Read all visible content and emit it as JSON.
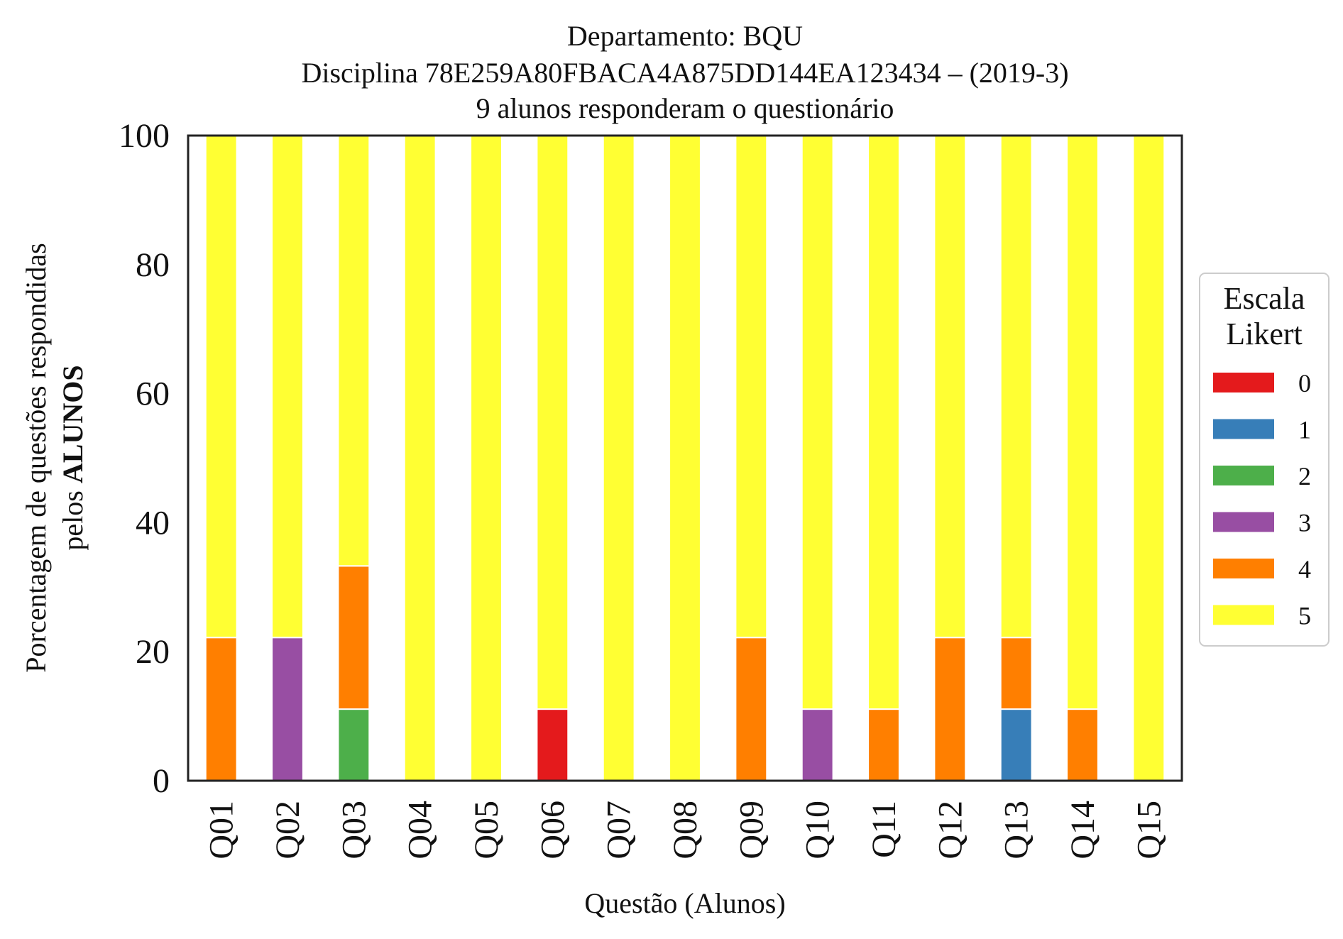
{
  "chart_data": {
    "type": "bar",
    "stacked": true,
    "title": [
      "Departamento: BQU",
      "Disciplina 78E259A80FBACA4A875DD144EA123434 – (2019-3)",
      "9 alunos responderam o questionário"
    ],
    "xlabel": "Questão (Alunos)",
    "ylabel_line1": "Porcentagem de questões respondidas",
    "ylabel_line2_prefix": "pelos ",
    "ylabel_line2_bold": "ALUNOS",
    "ylim": [
      0,
      100
    ],
    "yticks": [
      "0",
      "20",
      "40",
      "60",
      "80",
      "100"
    ],
    "grid": false,
    "legend_position": "right",
    "legend_title": [
      "Escala",
      "Likert"
    ],
    "categories": [
      "Q01",
      "Q02",
      "Q03",
      "Q04",
      "Q05",
      "Q06",
      "Q07",
      "Q08",
      "Q09",
      "Q10",
      "Q11",
      "Q12",
      "Q13",
      "Q14",
      "Q15"
    ],
    "series": [
      {
        "name": "0",
        "color": "#e41a1c",
        "values": [
          0,
          0,
          0,
          0,
          0,
          11.1,
          0,
          0,
          0,
          0,
          0,
          0,
          0,
          0,
          0
        ]
      },
      {
        "name": "1",
        "color": "#377eb8",
        "values": [
          0,
          0,
          0,
          0,
          0,
          0,
          0,
          0,
          0,
          0,
          0,
          0,
          11.1,
          0,
          0
        ]
      },
      {
        "name": "2",
        "color": "#4daf4a",
        "values": [
          0,
          0,
          11.1,
          0,
          0,
          0,
          0,
          0,
          0,
          0,
          0,
          0,
          0,
          0,
          0
        ]
      },
      {
        "name": "3",
        "color": "#984ea3",
        "values": [
          0,
          22.2,
          0,
          0,
          0,
          0,
          0,
          0,
          0,
          11.1,
          0,
          0,
          0,
          0,
          0
        ]
      },
      {
        "name": "4",
        "color": "#ff7f00",
        "values": [
          22.2,
          0,
          22.2,
          0,
          0,
          0,
          0,
          0,
          22.2,
          0,
          11.1,
          22.2,
          11.1,
          11.1,
          0
        ]
      },
      {
        "name": "5",
        "color": "#ffff33",
        "values": [
          77.8,
          77.8,
          66.7,
          100,
          100,
          88.9,
          100,
          100,
          77.8,
          88.9,
          88.9,
          77.8,
          77.8,
          88.9,
          100
        ]
      }
    ]
  }
}
